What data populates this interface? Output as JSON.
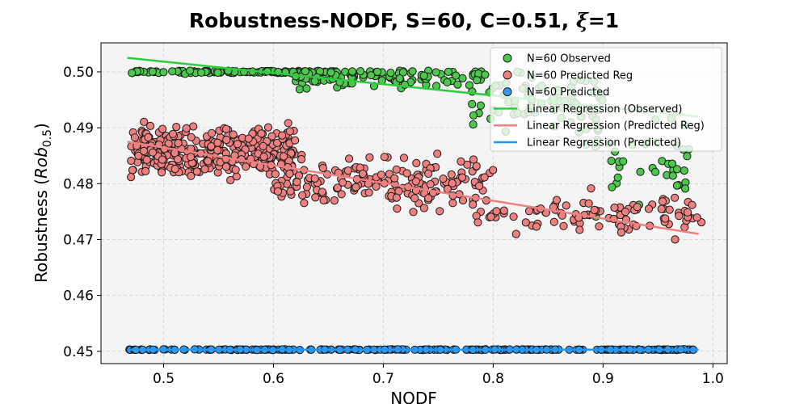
{
  "chart_data": {
    "type": "scatter",
    "title_main": "Robustness-NODF, S=60, C=0.51, ",
    "title_symbol": "ξ",
    "title_suffix": "=1",
    "xlabel": "NODF",
    "ylabel_main": "Robustness (",
    "ylabel_rob": "Rob",
    "ylabel_sub": "0.5",
    "ylabel_end": ")",
    "xlim": [
      0.443,
      1.013
    ],
    "ylim": [
      0.4478,
      0.5052
    ],
    "x_ticks": [
      0.5,
      0.6,
      0.7,
      0.8,
      0.9,
      1.0
    ],
    "x_tick_labels": [
      "0.5",
      "0.6",
      "0.7",
      "0.8",
      "0.9",
      "1.0"
    ],
    "y_ticks": [
      0.45,
      0.46,
      0.47,
      0.48,
      0.49,
      0.5
    ],
    "y_tick_labels": [
      "0.45",
      "0.46",
      "0.47",
      "0.48",
      "0.49",
      "0.50"
    ],
    "grid": true,
    "legend_position": "top-right",
    "background_color": "#f4f4f4",
    "series": [
      {
        "name": "N=60 Observed",
        "color": "#4cc94c",
        "kind": "scatter",
        "clusters": [
          {
            "x_range": [
              0.47,
              0.66
            ],
            "y_center": 0.5,
            "y_spread": 0.0002,
            "count": 120
          },
          {
            "x_range": [
              0.62,
              0.8
            ],
            "y_center": 0.499,
            "y_spread": 0.0012,
            "count": 110
          },
          {
            "x_range": [
              0.78,
              0.9
            ],
            "y_center": 0.495,
            "y_spread": 0.004,
            "count": 70
          },
          {
            "x_range": [
              0.88,
              0.98
            ],
            "y_center": 0.485,
            "y_spread": 0.006,
            "count": 45
          }
        ]
      },
      {
        "name": "N=60 Predicted Reg",
        "color": "#f08080",
        "kind": "scatter",
        "clusters": [
          {
            "x_range": [
              0.47,
              0.62
            ],
            "y_center": 0.4855,
            "y_spread": 0.003,
            "count": 350
          },
          {
            "x_range": [
              0.6,
              0.8
            ],
            "y_center": 0.4805,
            "y_spread": 0.003,
            "count": 180
          },
          {
            "x_range": [
              0.78,
              0.99
            ],
            "y_center": 0.4745,
            "y_spread": 0.0025,
            "count": 100
          }
        ]
      },
      {
        "name": "N=60 Predicted",
        "color": "#3399ee",
        "kind": "scatter",
        "clusters": [
          {
            "x_range": [
              0.467,
              0.987
            ],
            "y_center": 0.4503,
            "y_spread": 4e-05,
            "count": 260
          }
        ]
      }
    ],
    "regression_lines": [
      {
        "name": "Linear Regression (Observed)",
        "color": "#2ecc40",
        "x": [
          0.467,
          0.987
        ],
        "y": [
          0.5025,
          0.492
        ]
      },
      {
        "name": "Linear Regression (Predicted Reg)",
        "color": "#f08080",
        "x": [
          0.467,
          0.987
        ],
        "y": [
          0.4875,
          0.471
        ]
      },
      {
        "name": "Linear Regression (Predicted)",
        "color": "#2196f3",
        "x": [
          0.467,
          0.987
        ],
        "y": [
          0.4503,
          0.4503
        ]
      }
    ]
  }
}
